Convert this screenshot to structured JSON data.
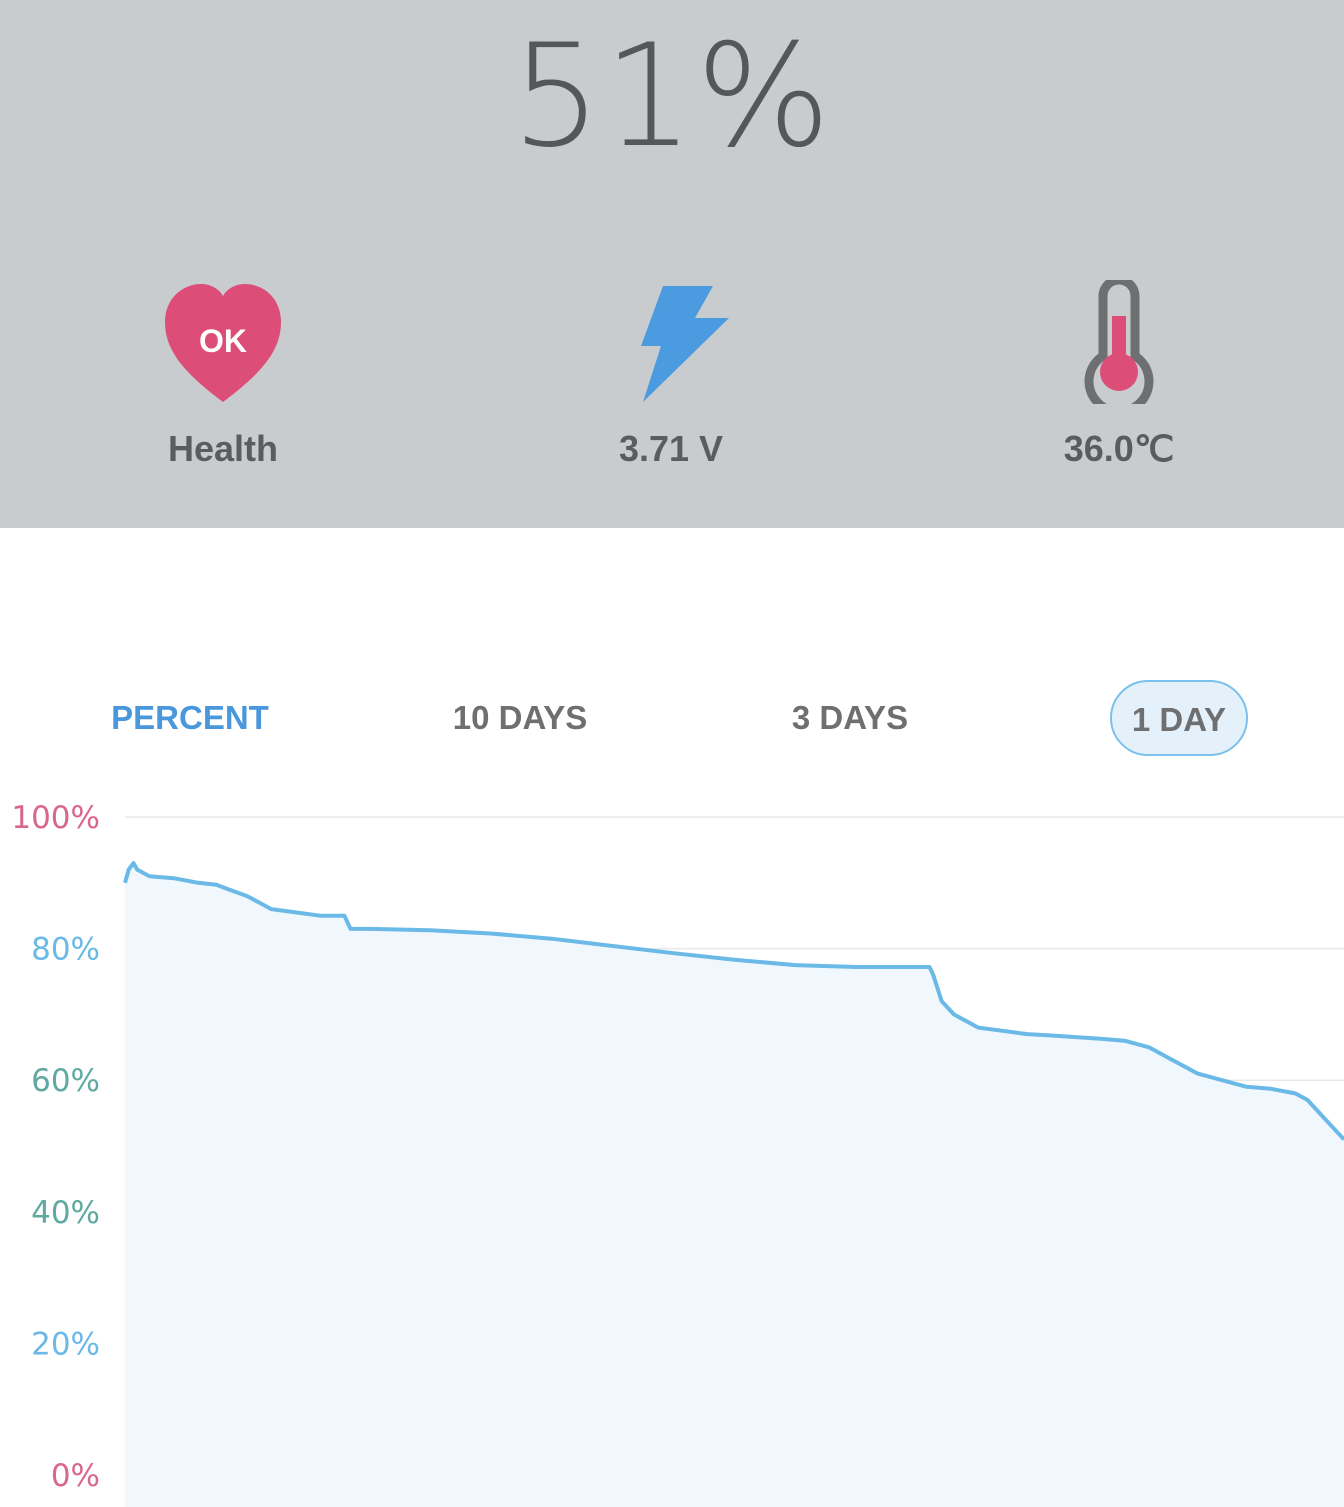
{
  "battery": {
    "percent_text": "51%"
  },
  "stats": {
    "health": {
      "badge": "OK",
      "label": "Health",
      "icon": "heart-icon",
      "color": "#dc4d78"
    },
    "voltage": {
      "label": "3.71 V",
      "icon": "lightning-bolt-icon",
      "color": "#4a9be0"
    },
    "temperature": {
      "label": "36.0℃",
      "icon": "thermometer-icon",
      "color": "#dc4d78"
    }
  },
  "tabs": {
    "title": "PERCENT",
    "items": [
      {
        "label": "10 DAYS",
        "selected": false
      },
      {
        "label": "3 DAYS",
        "selected": false
      },
      {
        "label": "1 DAY",
        "selected": true
      }
    ]
  },
  "chart_data": {
    "type": "area",
    "ylim": [
      0,
      100
    ],
    "yticks": [
      {
        "label": "100%",
        "value": 100,
        "color": "#d9668f"
      },
      {
        "label": "80%",
        "value": 80,
        "color": "#6bb9e6"
      },
      {
        "label": "60%",
        "value": 60,
        "color": "#5fa9a0"
      },
      {
        "label": "40%",
        "value": 40,
        "color": "#5fa9a0"
      },
      {
        "label": "20%",
        "value": 20,
        "color": "#6bb9e6"
      },
      {
        "label": "0%",
        "value": 0,
        "color": "#d9668f"
      }
    ],
    "grid": true,
    "xlim": [
      0,
      1
    ],
    "line_color": "#6bb9e6",
    "fill_color": "#f1f8fd",
    "series": [
      {
        "x": [
          0,
          0.003,
          0.007,
          0.01,
          0.02,
          0.04,
          0.06,
          0.075,
          0.085,
          0.1,
          0.11,
          0.12,
          0.12,
          0.14,
          0.16,
          0.18,
          0.185,
          0.19,
          0.2,
          0.25,
          0.3,
          0.35,
          0.4,
          0.45,
          0.5,
          0.55,
          0.6,
          0.63,
          0.66,
          0.663,
          0.67,
          0.68,
          0.69,
          0.7,
          0.72,
          0.74,
          0.76,
          0.8,
          0.82,
          0.84,
          0.85,
          0.86,
          0.87,
          0.88,
          0.9,
          0.92,
          0.94,
          0.96,
          0.97,
          0.98,
          0.99,
          1.0
        ],
        "y": [
          90,
          92,
          93,
          92,
          91,
          90.7,
          90,
          89.7,
          89,
          88,
          87,
          86,
          86,
          85.5,
          85,
          85,
          83,
          83,
          83,
          82.8,
          82.3,
          81.5,
          80.4,
          79.3,
          78.3,
          77.5,
          77.2,
          77.2,
          77.2,
          76,
          72,
          70,
          69,
          68,
          67.5,
          67,
          66.8,
          66.3,
          66,
          65,
          64,
          63,
          62,
          61,
          60,
          59,
          58.7,
          58,
          57,
          55,
          53,
          51
        ]
      }
    ]
  }
}
